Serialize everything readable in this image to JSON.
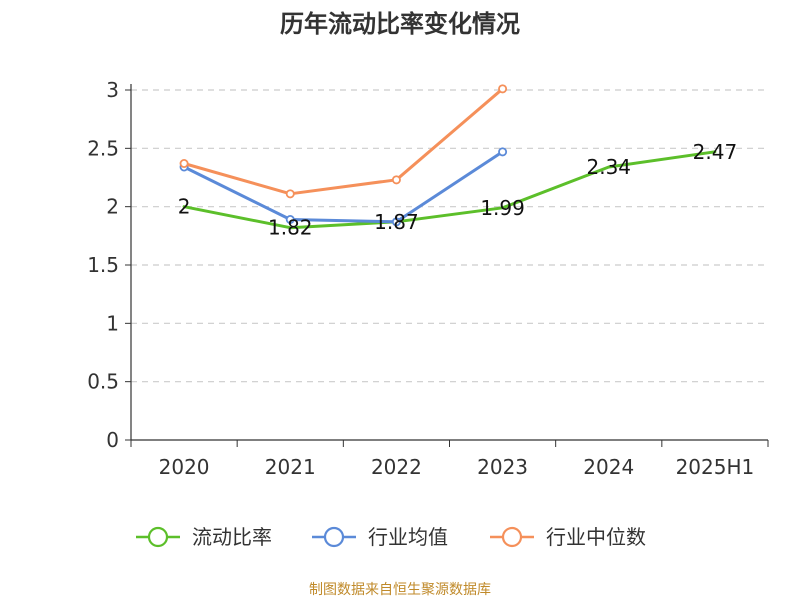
{
  "chart_data": {
    "type": "line",
    "title": "历年流动比率变化情况",
    "categories": [
      "2020",
      "2021",
      "2022",
      "2023",
      "2024",
      "2025H1"
    ],
    "ylim": [
      0,
      3
    ],
    "yticks": [
      0,
      0.5,
      1,
      1.5,
      2,
      2.5,
      3
    ],
    "ytick_labels": [
      "0",
      "0.5",
      "1",
      "1.5",
      "2",
      "2.5",
      "3"
    ],
    "grid": true,
    "legend_position": "bottom",
    "series": [
      {
        "name": "流动比率",
        "color": "#5cbf2a",
        "values": [
          2,
          1.82,
          1.87,
          1.99,
          2.34,
          2.47
        ],
        "labels": [
          "2",
          "1.82",
          "1.87",
          "1.99",
          "2.34",
          "2.47"
        ],
        "markers": false
      },
      {
        "name": "行业均值",
        "color": "#5b8ad8",
        "values": [
          2.34,
          1.89,
          1.87,
          2.47,
          null,
          null
        ],
        "markers": true
      },
      {
        "name": "行业中位数",
        "color": "#f5905a",
        "values": [
          2.37,
          2.11,
          2.23,
          3.01,
          null,
          null
        ],
        "markers": true
      }
    ],
    "footer": "制图数据来自恒生聚源数据库"
  }
}
